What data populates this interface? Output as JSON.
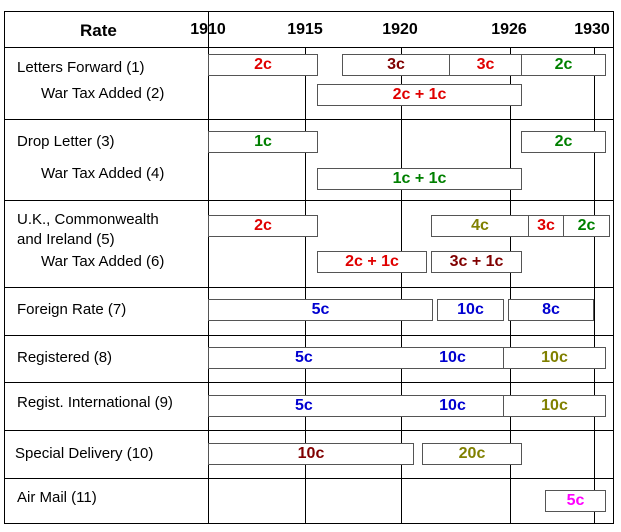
{
  "header": {
    "rate_label": "Rate"
  },
  "years": [
    "1910",
    "1915",
    "1920",
    "1926",
    "1930"
  ],
  "colors": {
    "red": "#e00000",
    "maroon": "#800000",
    "green": "#008000",
    "olive": "#808000",
    "blue": "#0000d0",
    "magenta": "#ff00ff"
  },
  "rows": [
    {
      "label": "Letters Forward (1)",
      "boxes": [
        "2c",
        "3c",
        "3c",
        "2c"
      ]
    },
    {
      "label": "War Tax Added (2)",
      "boxes": [
        "2c + 1c"
      ]
    },
    {
      "label": "Drop Letter (3)",
      "boxes": [
        "1c",
        "2c"
      ]
    },
    {
      "label": "War Tax Added (4)",
      "boxes": [
        "1c + 1c"
      ]
    },
    {
      "label_line1": "U.K., Commonwealth",
      "label_line2": "and Ireland (5)",
      "boxes": [
        "2c",
        "4c",
        "3c",
        "2c"
      ]
    },
    {
      "label": "War Tax Added (6)",
      "boxes": [
        "2c + 1c",
        "3c + 1c"
      ]
    },
    {
      "label": "Foreign Rate (7)",
      "boxes": [
        "5c",
        "10c",
        "8c"
      ]
    },
    {
      "label": "Registered (8)",
      "boxes": [
        "5c",
        "10c",
        "10c"
      ]
    },
    {
      "label": "Regist. International (9)",
      "boxes": [
        "5c",
        "10c",
        "10c"
      ]
    },
    {
      "label": "Special Delivery (10)",
      "boxes": [
        "10c",
        "20c"
      ]
    },
    {
      "label": "Air Mail (11)",
      "boxes": [
        "5c"
      ]
    }
  ]
}
